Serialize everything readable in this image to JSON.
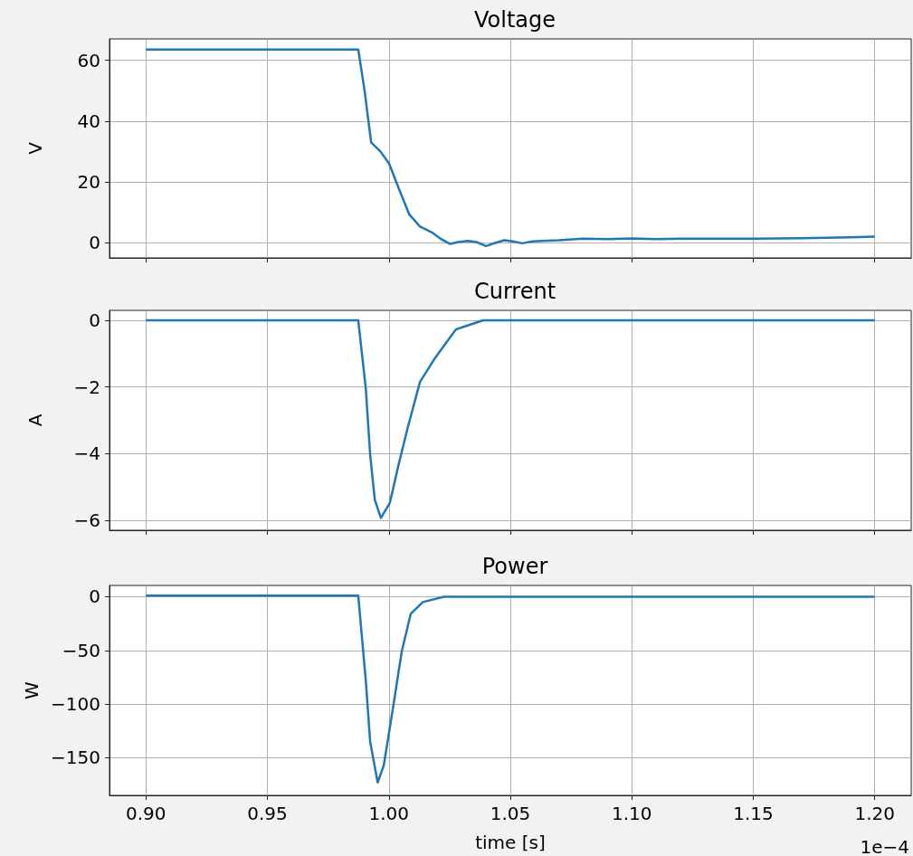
{
  "chart_data": [
    {
      "type": "line",
      "title": "Voltage",
      "ylabel": "V",
      "color": "#1f77b4",
      "grid": true,
      "tick_labels": "y",
      "x": [
        0.9,
        0.95,
        0.9862,
        0.9874,
        0.99,
        0.9927,
        0.9965,
        1.0001,
        1.004,
        1.0084,
        1.0128,
        1.0177,
        1.0215,
        1.0252,
        1.029,
        1.0326,
        1.036,
        1.04,
        1.044,
        1.0475,
        1.051,
        1.0549,
        1.059,
        1.063,
        1.07,
        1.08,
        1.09,
        1.1,
        1.11,
        1.12,
        1.13,
        1.14,
        1.15,
        1.16,
        1.17,
        1.18,
        1.19,
        1.2
      ],
      "values": [
        63.5,
        63.5,
        63.5,
        63.5,
        50,
        33,
        30,
        26,
        18,
        9.3,
        5.3,
        3.4,
        1.2,
        -0.4,
        0.3,
        0.6,
        0.2,
        -1.1,
        0,
        0.8,
        0.4,
        -0.2,
        0.4,
        0.6,
        0.8,
        1.3,
        1.2,
        1.4,
        1.2,
        1.3,
        1.3,
        1.3,
        1.3,
        1.4,
        1.5,
        1.6,
        1.8,
        2
      ],
      "xlim": [
        0.885,
        1.215
      ],
      "xticks": [
        {
          "value": 0.9,
          "label": null
        },
        {
          "value": 0.95,
          "label": null
        },
        {
          "value": 1.0,
          "label": null
        },
        {
          "value": 1.05,
          "label": null
        },
        {
          "value": 1.1,
          "label": null
        },
        {
          "value": 1.15,
          "label": null
        },
        {
          "value": 1.2,
          "label": null
        }
      ],
      "ylim": [
        -5,
        67
      ],
      "yticks": [
        0,
        20,
        40,
        60
      ]
    },
    {
      "type": "line",
      "title": "Current",
      "ylabel": "A",
      "color": "#1f77b4",
      "grid": true,
      "tick_labels": "y",
      "x": [
        0.9,
        0.95,
        0.9874,
        0.9905,
        0.9923,
        0.9942,
        0.9967,
        1.0004,
        1.0041,
        1.0078,
        1.0128,
        1.019,
        1.0276,
        1.0388,
        1.1,
        1.2
      ],
      "values": [
        0,
        0,
        0,
        -2.04,
        -4.03,
        -5.38,
        -5.93,
        -5.48,
        -4.3,
        -3.21,
        -1.85,
        -1.13,
        -0.27,
        0,
        0,
        0
      ],
      "xlim": [
        0.885,
        1.215
      ],
      "xticks": [
        {
          "value": 0.9,
          "label": null
        },
        {
          "value": 0.95,
          "label": null
        },
        {
          "value": 1.0,
          "label": null
        },
        {
          "value": 1.05,
          "label": null
        },
        {
          "value": 1.1,
          "label": null
        },
        {
          "value": 1.15,
          "label": null
        },
        {
          "value": 1.2,
          "label": null
        }
      ],
      "ylim": [
        -6.3,
        0.3
      ],
      "yticks": [
        -6,
        -4,
        -2,
        0
      ]
    },
    {
      "type": "line",
      "title": "Power",
      "ylabel": "W",
      "xlabel": "time [s]",
      "annotations": [
        "1e−4"
      ],
      "color": "#1f77b4",
      "grid": true,
      "x": [
        0.9,
        0.95,
        0.9874,
        0.9905,
        0.9923,
        0.9954,
        0.9979,
        1.0016,
        1.0053,
        1.009,
        1.014,
        1.0227,
        1.1,
        1.2
      ],
      "values": [
        1,
        1,
        1,
        -78,
        -135,
        -173,
        -157,
        -105,
        -51,
        -16,
        -5,
        0,
        0,
        0
      ],
      "xlim": [
        0.885,
        1.215
      ],
      "xticks": [
        {
          "value": 0.9,
          "label": "0.90"
        },
        {
          "value": 0.95,
          "label": "0.95"
        },
        {
          "value": 1.0,
          "label": "1.00"
        },
        {
          "value": 1.05,
          "label": "1.05"
        },
        {
          "value": 1.1,
          "label": "1.10"
        },
        {
          "value": 1.15,
          "label": "1.15"
        },
        {
          "value": 1.2,
          "label": "1.20"
        }
      ],
      "ylim": [
        -185,
        10.5
      ],
      "yticks": [
        -150,
        -100,
        -50,
        0
      ]
    }
  ]
}
